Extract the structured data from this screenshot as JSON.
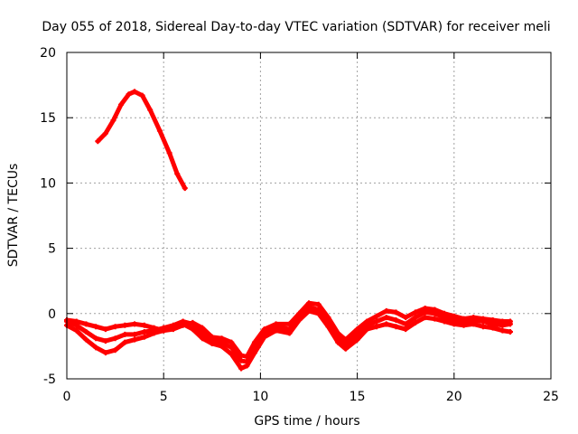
{
  "chart_data": {
    "type": "scatter",
    "title": "Day 055 of 2018, Sidereal Day-to-day VTEC variation (SDTVAR) for receiver meli",
    "xlabel": "GPS time / hours",
    "ylabel": "SDTVAR / TECUs",
    "xlim": [
      0,
      25
    ],
    "ylim": [
      -5,
      20
    ],
    "xticks": [
      0,
      5,
      10,
      15,
      20,
      25
    ],
    "yticks": [
      -5,
      0,
      5,
      10,
      15,
      20
    ],
    "xtick_labels": [
      "0",
      "5",
      "10",
      "15",
      "20",
      "25"
    ],
    "ytick_labels": [
      "-5",
      "0",
      "5",
      "10",
      "15",
      "20"
    ],
    "grid": true,
    "color": "#ff0000",
    "series": [
      {
        "name": "arc-high",
        "points": [
          [
            1.6,
            13.2
          ],
          [
            2.0,
            13.8
          ],
          [
            2.4,
            14.8
          ],
          [
            2.8,
            16.0
          ],
          [
            3.2,
            16.8
          ],
          [
            3.5,
            17.0
          ],
          [
            3.9,
            16.7
          ],
          [
            4.3,
            15.6
          ],
          [
            4.8,
            14.0
          ],
          [
            5.3,
            12.3
          ],
          [
            5.7,
            10.7
          ],
          [
            6.1,
            9.6
          ]
        ]
      },
      {
        "name": "trace-1",
        "points": [
          [
            0,
            -0.6
          ],
          [
            0.5,
            -0.9
          ],
          [
            1.0,
            -1.4
          ],
          [
            1.5,
            -1.9
          ],
          [
            2.0,
            -2.1
          ],
          [
            2.5,
            -1.9
          ],
          [
            3.0,
            -1.6
          ],
          [
            3.5,
            -1.6
          ],
          [
            4.0,
            -1.4
          ],
          [
            4.5,
            -1.3
          ],
          [
            5.0,
            -1.1
          ],
          [
            5.5,
            -0.9
          ],
          [
            6.0,
            -0.6
          ],
          [
            6.5,
            -0.8
          ],
          [
            7.0,
            -1.5
          ],
          [
            7.5,
            -2.0
          ],
          [
            8.0,
            -2.2
          ],
          [
            8.5,
            -2.6
          ],
          [
            9.0,
            -3.6
          ],
          [
            9.3,
            -3.7
          ],
          [
            9.7,
            -2.6
          ],
          [
            10.2,
            -1.5
          ],
          [
            10.8,
            -1.0
          ],
          [
            11.5,
            -1.2
          ],
          [
            12.0,
            -0.3
          ],
          [
            12.5,
            0.5
          ],
          [
            13.0,
            0.3
          ],
          [
            13.5,
            -0.6
          ],
          [
            14.0,
            -1.8
          ],
          [
            14.4,
            -2.4
          ],
          [
            15.0,
            -1.6
          ],
          [
            15.5,
            -0.9
          ],
          [
            16.0,
            -0.6
          ],
          [
            16.5,
            -0.3
          ],
          [
            17.0,
            -0.5
          ],
          [
            17.5,
            -0.8
          ],
          [
            18.0,
            -0.3
          ],
          [
            18.5,
            0.1
          ],
          [
            19.0,
            0.0
          ],
          [
            19.5,
            -0.3
          ],
          [
            20.0,
            -0.5
          ],
          [
            20.5,
            -0.6
          ],
          [
            21.0,
            -0.5
          ],
          [
            21.5,
            -0.6
          ],
          [
            22.0,
            -0.8
          ],
          [
            22.5,
            -0.9
          ],
          [
            22.9,
            -0.8
          ]
        ]
      },
      {
        "name": "trace-2",
        "points": [
          [
            0,
            -0.9
          ],
          [
            0.5,
            -1.3
          ],
          [
            1.0,
            -2.0
          ],
          [
            1.5,
            -2.6
          ],
          [
            2.0,
            -3.0
          ],
          [
            2.5,
            -2.8
          ],
          [
            3.0,
            -2.2
          ],
          [
            3.5,
            -2.0
          ],
          [
            4.0,
            -1.8
          ],
          [
            4.5,
            -1.5
          ],
          [
            5.0,
            -1.3
          ],
          [
            5.5,
            -1.0
          ],
          [
            6.0,
            -0.8
          ],
          [
            6.5,
            -1.2
          ],
          [
            7.0,
            -1.9
          ],
          [
            7.5,
            -2.3
          ],
          [
            8.0,
            -2.5
          ],
          [
            8.5,
            -3.1
          ],
          [
            9.0,
            -4.2
          ],
          [
            9.3,
            -4.0
          ],
          [
            9.7,
            -3.0
          ],
          [
            10.2,
            -1.8
          ],
          [
            10.8,
            -1.3
          ],
          [
            11.5,
            -1.5
          ],
          [
            12.0,
            -0.5
          ],
          [
            12.5,
            0.2
          ],
          [
            13.0,
            0.0
          ],
          [
            13.5,
            -1.0
          ],
          [
            14.0,
            -2.2
          ],
          [
            14.4,
            -2.7
          ],
          [
            15.0,
            -2.0
          ],
          [
            15.5,
            -1.2
          ],
          [
            16.0,
            -1.0
          ],
          [
            16.5,
            -0.8
          ],
          [
            17.0,
            -1.0
          ],
          [
            17.5,
            -1.2
          ],
          [
            18.0,
            -0.7
          ],
          [
            18.5,
            -0.3
          ],
          [
            19.0,
            -0.4
          ],
          [
            19.5,
            -0.6
          ],
          [
            20.0,
            -0.8
          ],
          [
            20.5,
            -0.9
          ],
          [
            21.0,
            -0.8
          ],
          [
            21.5,
            -1.0
          ],
          [
            22.0,
            -1.1
          ],
          [
            22.5,
            -1.3
          ],
          [
            22.9,
            -1.4
          ]
        ]
      },
      {
        "name": "trace-3",
        "points": [
          [
            0,
            -0.5
          ],
          [
            0.5,
            -0.6
          ],
          [
            1.0,
            -0.8
          ],
          [
            1.5,
            -1.0
          ],
          [
            2.0,
            -1.2
          ],
          [
            2.5,
            -1.0
          ],
          [
            3.0,
            -0.9
          ],
          [
            3.5,
            -0.8
          ],
          [
            4.0,
            -0.9
          ],
          [
            4.5,
            -1.1
          ],
          [
            5.0,
            -1.3
          ],
          [
            5.5,
            -1.2
          ],
          [
            6.0,
            -0.9
          ],
          [
            6.5,
            -0.7
          ],
          [
            7.0,
            -1.1
          ],
          [
            7.5,
            -1.8
          ],
          [
            8.0,
            -1.9
          ],
          [
            8.5,
            -2.2
          ],
          [
            9.0,
            -3.2
          ],
          [
            9.3,
            -3.3
          ],
          [
            9.7,
            -2.2
          ],
          [
            10.2,
            -1.2
          ],
          [
            10.8,
            -0.8
          ],
          [
            11.5,
            -0.8
          ],
          [
            12.0,
            0.0
          ],
          [
            12.5,
            0.8
          ],
          [
            13.0,
            0.7
          ],
          [
            13.5,
            -0.3
          ],
          [
            14.0,
            -1.5
          ],
          [
            14.4,
            -2.0
          ],
          [
            15.0,
            -1.2
          ],
          [
            15.5,
            -0.6
          ],
          [
            16.0,
            -0.2
          ],
          [
            16.5,
            0.2
          ],
          [
            17.0,
            0.1
          ],
          [
            17.5,
            -0.3
          ],
          [
            18.0,
            0.1
          ],
          [
            18.5,
            0.4
          ],
          [
            19.0,
            0.3
          ],
          [
            19.5,
            0.0
          ],
          [
            20.0,
            -0.2
          ],
          [
            20.5,
            -0.4
          ],
          [
            21.0,
            -0.3
          ],
          [
            21.5,
            -0.4
          ],
          [
            22.0,
            -0.5
          ],
          [
            22.5,
            -0.6
          ],
          [
            22.9,
            -0.6
          ]
        ]
      }
    ]
  }
}
